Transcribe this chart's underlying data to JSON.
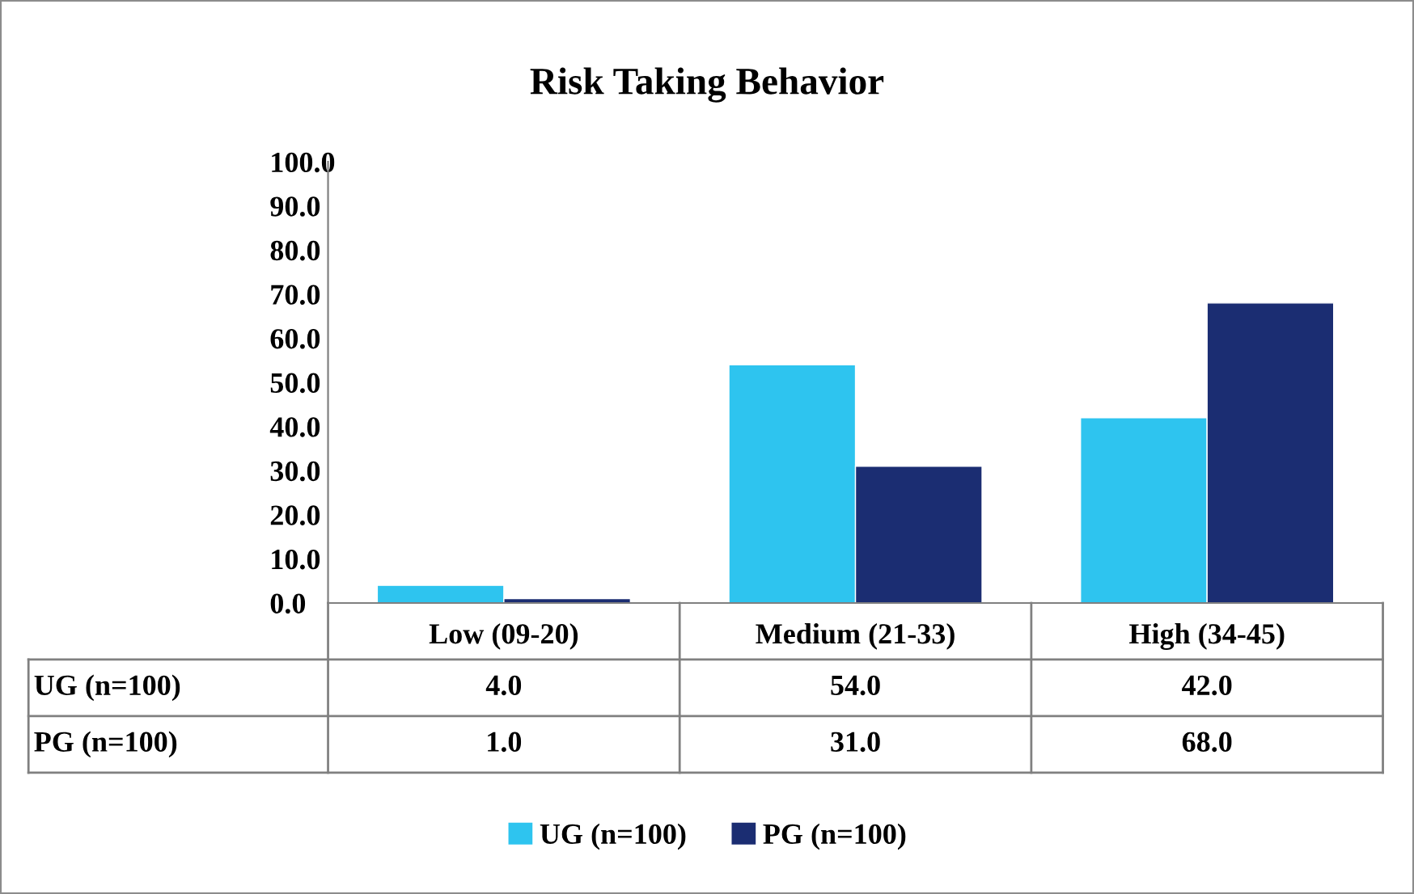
{
  "chart_data": {
    "type": "bar",
    "title": "Risk Taking Behavior",
    "categories": [
      "Low (09-20)",
      "Medium (21-33)",
      "High (34-45)"
    ],
    "series": [
      {
        "name": "UG (n=100)",
        "color": "#2ec4ef",
        "values": [
          4.0,
          54.0,
          42.0
        ],
        "value_labels": [
          "4.0",
          "54.0",
          "42.0"
        ]
      },
      {
        "name": "PG (n=100)",
        "color": "#1b2d72",
        "values": [
          1.0,
          31.0,
          68.0
        ],
        "value_labels": [
          "1.0",
          "31.0",
          "68.0"
        ]
      }
    ],
    "ylim": [
      0,
      100
    ],
    "yticks": [
      {
        "value": 0,
        "label": "0.0"
      },
      {
        "value": 10,
        "label": "10.0"
      },
      {
        "value": 20,
        "label": "20.0"
      },
      {
        "value": 30,
        "label": "30.0"
      },
      {
        "value": 40,
        "label": "40.0"
      },
      {
        "value": 50,
        "label": "50.0"
      },
      {
        "value": 60,
        "label": "60.0"
      },
      {
        "value": 70,
        "label": "70.0"
      },
      {
        "value": 80,
        "label": "80.0"
      },
      {
        "value": 90,
        "label": "90.0"
      },
      {
        "value": 100,
        "label": "100.0"
      }
    ],
    "grid": false,
    "legend": "bottom"
  }
}
